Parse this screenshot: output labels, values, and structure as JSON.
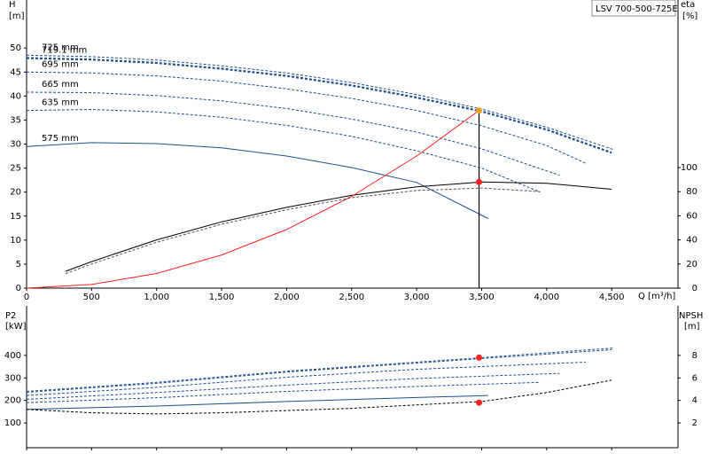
{
  "chart_data": [
    {
      "type": "line",
      "title": "LSV 700-500-725E",
      "y_label": "H",
      "y_unit": "[m]",
      "y2_label": "eta",
      "y2_unit": "[%]",
      "x_label": "Q [m³/h]",
      "xlim": [
        0,
        5010
      ],
      "xticks": [
        0,
        500,
        {
          "value": 1000,
          "label": "1,000"
        },
        {
          "value": 1500,
          "label": "1,500"
        },
        {
          "value": 2000,
          "label": "2,000"
        },
        {
          "value": 2500,
          "label": "2,500"
        },
        {
          "value": 3000,
          "label": "3,000"
        },
        {
          "value": 3500,
          "label": "3,500"
        },
        {
          "value": 4000,
          "label": "4,000"
        },
        {
          "value": 4500,
          "label": "4,500"
        }
      ],
      "ylim": [
        0,
        60
      ],
      "yticks": [
        0,
        5,
        10,
        15,
        20,
        25,
        30,
        35,
        40,
        45,
        50
      ],
      "y2lim": [
        0,
        239
      ],
      "y2ticks": [
        0,
        20,
        40,
        60,
        80,
        100
      ],
      "series": [
        {
          "name": "725 mm",
          "color": "#1f4e8c",
          "dash": true,
          "x": [
            0,
            500,
            1000,
            1500,
            2000,
            2500,
            3000,
            3500,
            4000,
            4520
          ],
          "values": [
            48.5,
            48.2,
            47.5,
            46.3,
            44.8,
            42.8,
            40.3,
            37.3,
            33.5,
            28.8
          ]
        },
        {
          "name": "719.1 mm",
          "color": "#1f4e8c",
          "dash": true,
          "bold": true,
          "x": [
            0,
            500,
            1000,
            1500,
            2000,
            2500,
            3000,
            3500,
            4000,
            4500
          ],
          "values": [
            47.9,
            47.6,
            46.9,
            45.7,
            44.2,
            42.2,
            39.7,
            36.8,
            33.0,
            28.2
          ]
        },
        {
          "name": "695 mm",
          "color": "#1f4e8c",
          "dash": true,
          "x": [
            0,
            500,
            1000,
            1500,
            2000,
            2500,
            3000,
            3500,
            4000,
            4300
          ],
          "values": [
            45,
            44.8,
            44.2,
            43.1,
            41.5,
            39.5,
            37,
            33.8,
            29.7,
            26
          ]
        },
        {
          "name": "665 mm",
          "color": "#1f4e8c",
          "dash": true,
          "x": [
            0,
            500,
            1000,
            1500,
            2000,
            2500,
            3000,
            3500,
            4100
          ],
          "values": [
            40.8,
            40.7,
            40.1,
            39,
            37.4,
            35.2,
            32.5,
            29,
            23.5
          ]
        },
        {
          "name": "635 mm",
          "color": "#1f4e8c",
          "dash": true,
          "x": [
            0,
            500,
            1000,
            1500,
            2000,
            2500,
            3000,
            3500,
            3950
          ],
          "values": [
            37,
            37.2,
            36.7,
            35.6,
            33.9,
            31.6,
            28.6,
            25,
            20
          ]
        },
        {
          "name": "575 mm",
          "color": "#1f4e8c",
          "x": [
            0,
            500,
            1000,
            1500,
            2000,
            2500,
            3000,
            3550
          ],
          "values": [
            29.5,
            30.3,
            30.1,
            29.2,
            27.5,
            25.1,
            22,
            14.5
          ]
        },
        {
          "color": "#000000",
          "axis": "y2",
          "x": [
            300,
            500,
            1000,
            1500,
            2000,
            2500,
            3000,
            3500,
            4000,
            4500
          ],
          "values": [
            14,
            22,
            40,
            55,
            67,
            77,
            84,
            88,
            87,
            82
          ]
        },
        {
          "color": "#555555",
          "axis": "y2",
          "dash": true,
          "x": [
            300,
            500,
            1000,
            1500,
            2000,
            2500,
            3000,
            3500,
            3950
          ],
          "values": [
            12,
            20,
            38,
            53,
            65,
            75,
            81,
            83,
            80
          ]
        },
        {
          "color": "#ff2020",
          "x": [
            0,
            500,
            1000,
            1500,
            2000,
            2500,
            3000,
            3480
          ],
          "values": [
            0,
            0.76,
            3.05,
            6.9,
            12.2,
            19.1,
            27.5,
            37
          ]
        }
      ],
      "points": [
        {
          "x": 3480,
          "y": 37,
          "color": "#f0a020"
        },
        {
          "x": 3480,
          "y": 88,
          "axis": "y2",
          "color": "#ff2020"
        }
      ]
    },
    {
      "type": "line",
      "y_label": "P2",
      "y_unit": "[kW]",
      "y2_label": "NPSH",
      "y2_unit": "[m]",
      "xlim": [
        0,
        5010
      ],
      "ylim": [
        -10,
        620
      ],
      "yticks": [
        100,
        200,
        300,
        400
      ],
      "y2lim": [
        -0.2,
        12.4
      ],
      "y2ticks": [
        2,
        4,
        6,
        8
      ],
      "series": [
        {
          "color": "#1f4e8c",
          "dash": true,
          "x": [
            0,
            1000,
            2000,
            3000,
            3500,
            4520
          ],
          "values": [
            240,
            280,
            330,
            370,
            390,
            433
          ]
        },
        {
          "color": "#1f4e8c",
          "dash": true,
          "x": [
            0,
            1000,
            2000,
            3000,
            3500,
            4500
          ],
          "values": [
            236,
            276,
            326,
            366,
            386,
            425
          ]
        },
        {
          "color": "#1f4e8c",
          "dash": true,
          "x": [
            0,
            1000,
            2000,
            3000,
            4300
          ],
          "values": [
            222,
            258,
            303,
            338,
            370
          ]
        },
        {
          "color": "#1f4e8c",
          "dash": true,
          "x": [
            0,
            1000,
            2000,
            3000,
            4100
          ],
          "values": [
            205,
            235,
            268,
            297,
            320
          ]
        },
        {
          "color": "#1f4e8c",
          "dash": true,
          "x": [
            0,
            1000,
            2000,
            3000,
            3950
          ],
          "values": [
            190,
            212,
            240,
            262,
            280
          ]
        },
        {
          "color": "#1f4e8c",
          "x": [
            0,
            1000,
            2000,
            3000,
            3550
          ],
          "values": [
            160,
            175,
            195,
            213,
            222
          ]
        },
        {
          "color": "#000000",
          "dash": true,
          "axis": "y2",
          "x": [
            0,
            500,
            1000,
            1500,
            2000,
            2500,
            3000,
            3500,
            4000,
            4500
          ],
          "values": [
            3.2,
            2.9,
            2.8,
            2.9,
            3.1,
            3.3,
            3.6,
            3.9,
            4.7,
            5.8
          ]
        }
      ],
      "points": [
        {
          "x": 3480,
          "y": 390,
          "color": "#ff2020"
        },
        {
          "x": 3480,
          "y": 3.8,
          "axis": "y2",
          "color": "#ff2020"
        }
      ]
    }
  ]
}
